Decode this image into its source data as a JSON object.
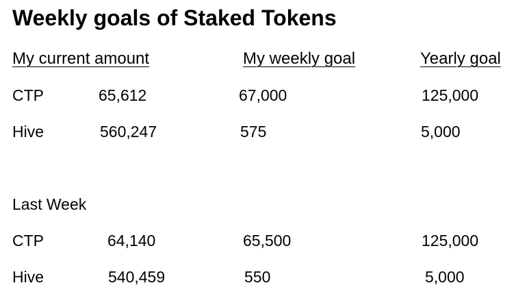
{
  "title": "Weekly goals of Staked Tokens",
  "headers": {
    "current": "My current amount",
    "weekly": "My weekly goal",
    "yearly": "Yearly goal"
  },
  "current": {
    "ctp": {
      "token": "CTP",
      "amount": "65,612",
      "weekly_goal": "67,000",
      "yearly_goal": "125,000"
    },
    "hive": {
      "token": "Hive",
      "amount": "560,247",
      "weekly_goal": "575",
      "yearly_goal": "5,000"
    }
  },
  "last_week": {
    "label": "Last Week",
    "ctp": {
      "token": "CTP",
      "amount": "64,140",
      "weekly_goal": "65,500",
      "yearly_goal": "125,000"
    },
    "hive": {
      "token": "Hive",
      "amount": "540,459",
      "weekly_goal": "550",
      "yearly_goal": "5,000"
    }
  }
}
